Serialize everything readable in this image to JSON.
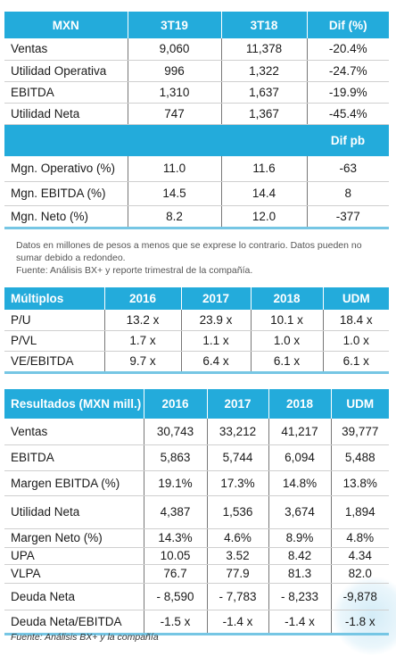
{
  "t1": {
    "head": [
      "MXN",
      "3T19",
      "3T18",
      "Dif (%)"
    ],
    "rows": [
      [
        "Ventas",
        "9,060",
        "11,378",
        "-20.4%"
      ],
      [
        "Utilidad Operativa",
        "996",
        "1,322",
        "-24.7%"
      ],
      [
        "EBITDA",
        "1,310",
        "1,637",
        "-19.9%"
      ],
      [
        "Utilidad Neta",
        "747",
        "1,367",
        "-45.4%"
      ]
    ],
    "subhead": "Dif pb",
    "rows2": [
      [
        "Mgn. Operativo (%)",
        "11.0",
        "11.6",
        "-63"
      ],
      [
        "Mgn. EBITDA (%)",
        "14.5",
        "14.4",
        "8"
      ],
      [
        "Mgn. Neto (%)",
        "8.2",
        "12.0",
        "-377"
      ]
    ]
  },
  "note": {
    "line1": "Datos en millones de pesos a menos que se exprese lo contrario. Datos pueden no sumar debido a redondeo.",
    "line2": "Fuente: Análisis BX+ y reporte trimestral de la compañía."
  },
  "t2": {
    "head": [
      "Múltiplos",
      "2016",
      "2017",
      "2018",
      "UDM"
    ],
    "rows": [
      [
        "P/U",
        "13.2 x",
        "23.9 x",
        "10.1 x",
        "18.4 x"
      ],
      [
        "P/VL",
        "1.7 x",
        "1.1 x",
        "1.0 x",
        "1.0 x"
      ],
      [
        "VE/EBITDA",
        "9.7 x",
        "6.4 x",
        "6.1 x",
        "6.1 x"
      ]
    ]
  },
  "t3": {
    "head": [
      "Resultados (MXN mill.)",
      "2016",
      "2017",
      "2018",
      "UDM"
    ],
    "rows": [
      [
        "Ventas",
        "30,743",
        "33,212",
        "41,217",
        "39,777"
      ],
      [
        "EBITDA",
        "5,863",
        "5,744",
        "6,094",
        "5,488"
      ],
      [
        "Margen EBITDA (%)",
        "19.1%",
        "17.3%",
        "14.8%",
        "13.8%"
      ],
      [
        "Utilidad Neta",
        "4,387",
        "1,536",
        "3,674",
        "1,894"
      ],
      [
        "Margen Neto (%)",
        "14.3%",
        "4.6%",
        "8.9%",
        "4.8%"
      ],
      [
        "UPA",
        "10.05",
        "3.52",
        "8.42",
        "4.34"
      ],
      [
        "VLPA",
        "76.7",
        "77.9",
        "81.3",
        "82.0"
      ],
      [
        "Deuda Neta",
        "- 8,590",
        "- 7,783",
        "- 8,233",
        "-9,878"
      ],
      [
        "Deuda Neta/EBITDA",
        "-1.5 x",
        "-1.4 x",
        "-1.4 x",
        "-1.8 x"
      ]
    ]
  },
  "footer": "Fuente: Análisis BX+ y la compañía"
}
